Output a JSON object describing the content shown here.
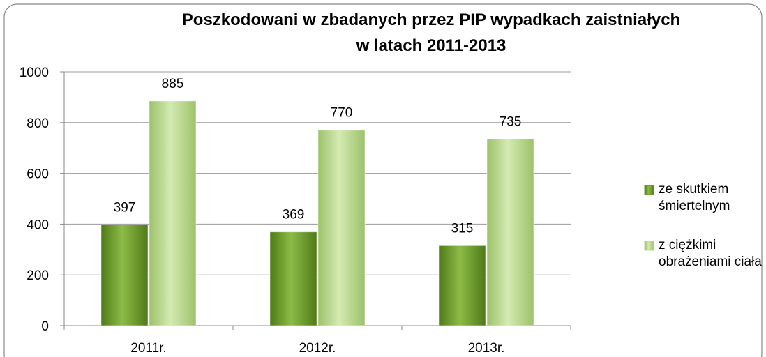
{
  "chart_data": {
    "type": "bar",
    "title": [
      "Poszkodowani w zbadanych przez PIP wypadkach zaistniałych",
      "w latach 2011-2013"
    ],
    "categories": [
      "2011r.",
      "2012r.",
      "2013r."
    ],
    "series": [
      {
        "name": "ze skutkiem śmiertelnym",
        "color": "#6b9a2a",
        "values": [
          397,
          369,
          315
        ]
      },
      {
        "name": "z ciężkimi obrażeniami ciała",
        "color": "#b9d68e",
        "values": [
          885,
          770,
          735
        ]
      }
    ],
    "ylim": [
      0,
      1000
    ],
    "yticks": [
      0,
      200,
      400,
      600,
      800,
      1000
    ],
    "grid": true,
    "legend": "right"
  }
}
